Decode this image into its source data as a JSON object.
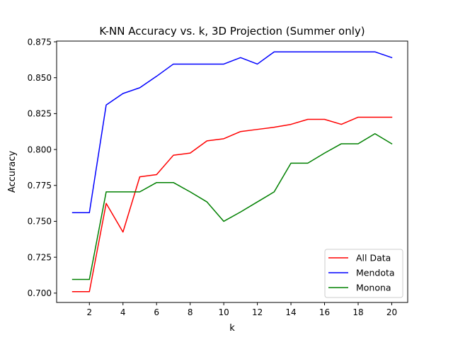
{
  "chart_data": {
    "type": "line",
    "title": "K-NN Accuracy vs. k, 3D Projection (Summer only)",
    "xlabel": "k",
    "ylabel": "Accuracy",
    "xlim": [
      0.05,
      20.95
    ],
    "ylim": [
      0.6935,
      0.8755
    ],
    "xticks": [
      2,
      4,
      6,
      8,
      10,
      12,
      14,
      16,
      18,
      20
    ],
    "yticks": [
      0.7,
      0.725,
      0.75,
      0.775,
      0.8,
      0.825,
      0.85,
      0.875
    ],
    "ytick_labels": [
      "0.700",
      "0.725",
      "0.750",
      "0.775",
      "0.800",
      "0.825",
      "0.850",
      "0.875"
    ],
    "grid": false,
    "legend_position": "lower-right",
    "x": [
      1,
      2,
      3,
      4,
      5,
      6,
      7,
      8,
      9,
      10,
      11,
      12,
      13,
      14,
      15,
      16,
      17,
      18,
      19,
      20
    ],
    "series": [
      {
        "name": "All Data",
        "color": "#ff0000",
        "values": [
          0.701,
          0.701,
          0.7625,
          0.7425,
          0.781,
          0.7825,
          0.796,
          0.7975,
          0.806,
          0.8075,
          0.8125,
          0.814,
          0.8155,
          0.8175,
          0.821,
          0.821,
          0.8175,
          0.8225,
          0.8225,
          0.8225
        ]
      },
      {
        "name": "Mendota",
        "color": "#0000ff",
        "values": [
          0.756,
          0.756,
          0.831,
          0.839,
          0.843,
          0.851,
          0.8595,
          0.8595,
          0.8595,
          0.8595,
          0.864,
          0.8595,
          0.868,
          0.868,
          0.868,
          0.868,
          0.868,
          0.868,
          0.868,
          0.864
        ]
      },
      {
        "name": "Monona",
        "color": "#008000",
        "values": [
          0.7095,
          0.7095,
          0.7705,
          0.7705,
          0.7705,
          0.777,
          0.777,
          0.7705,
          0.7635,
          0.75,
          0.7565,
          0.7635,
          0.7705,
          0.7905,
          0.7905,
          0.7975,
          0.804,
          0.804,
          0.811,
          0.804
        ]
      }
    ]
  }
}
